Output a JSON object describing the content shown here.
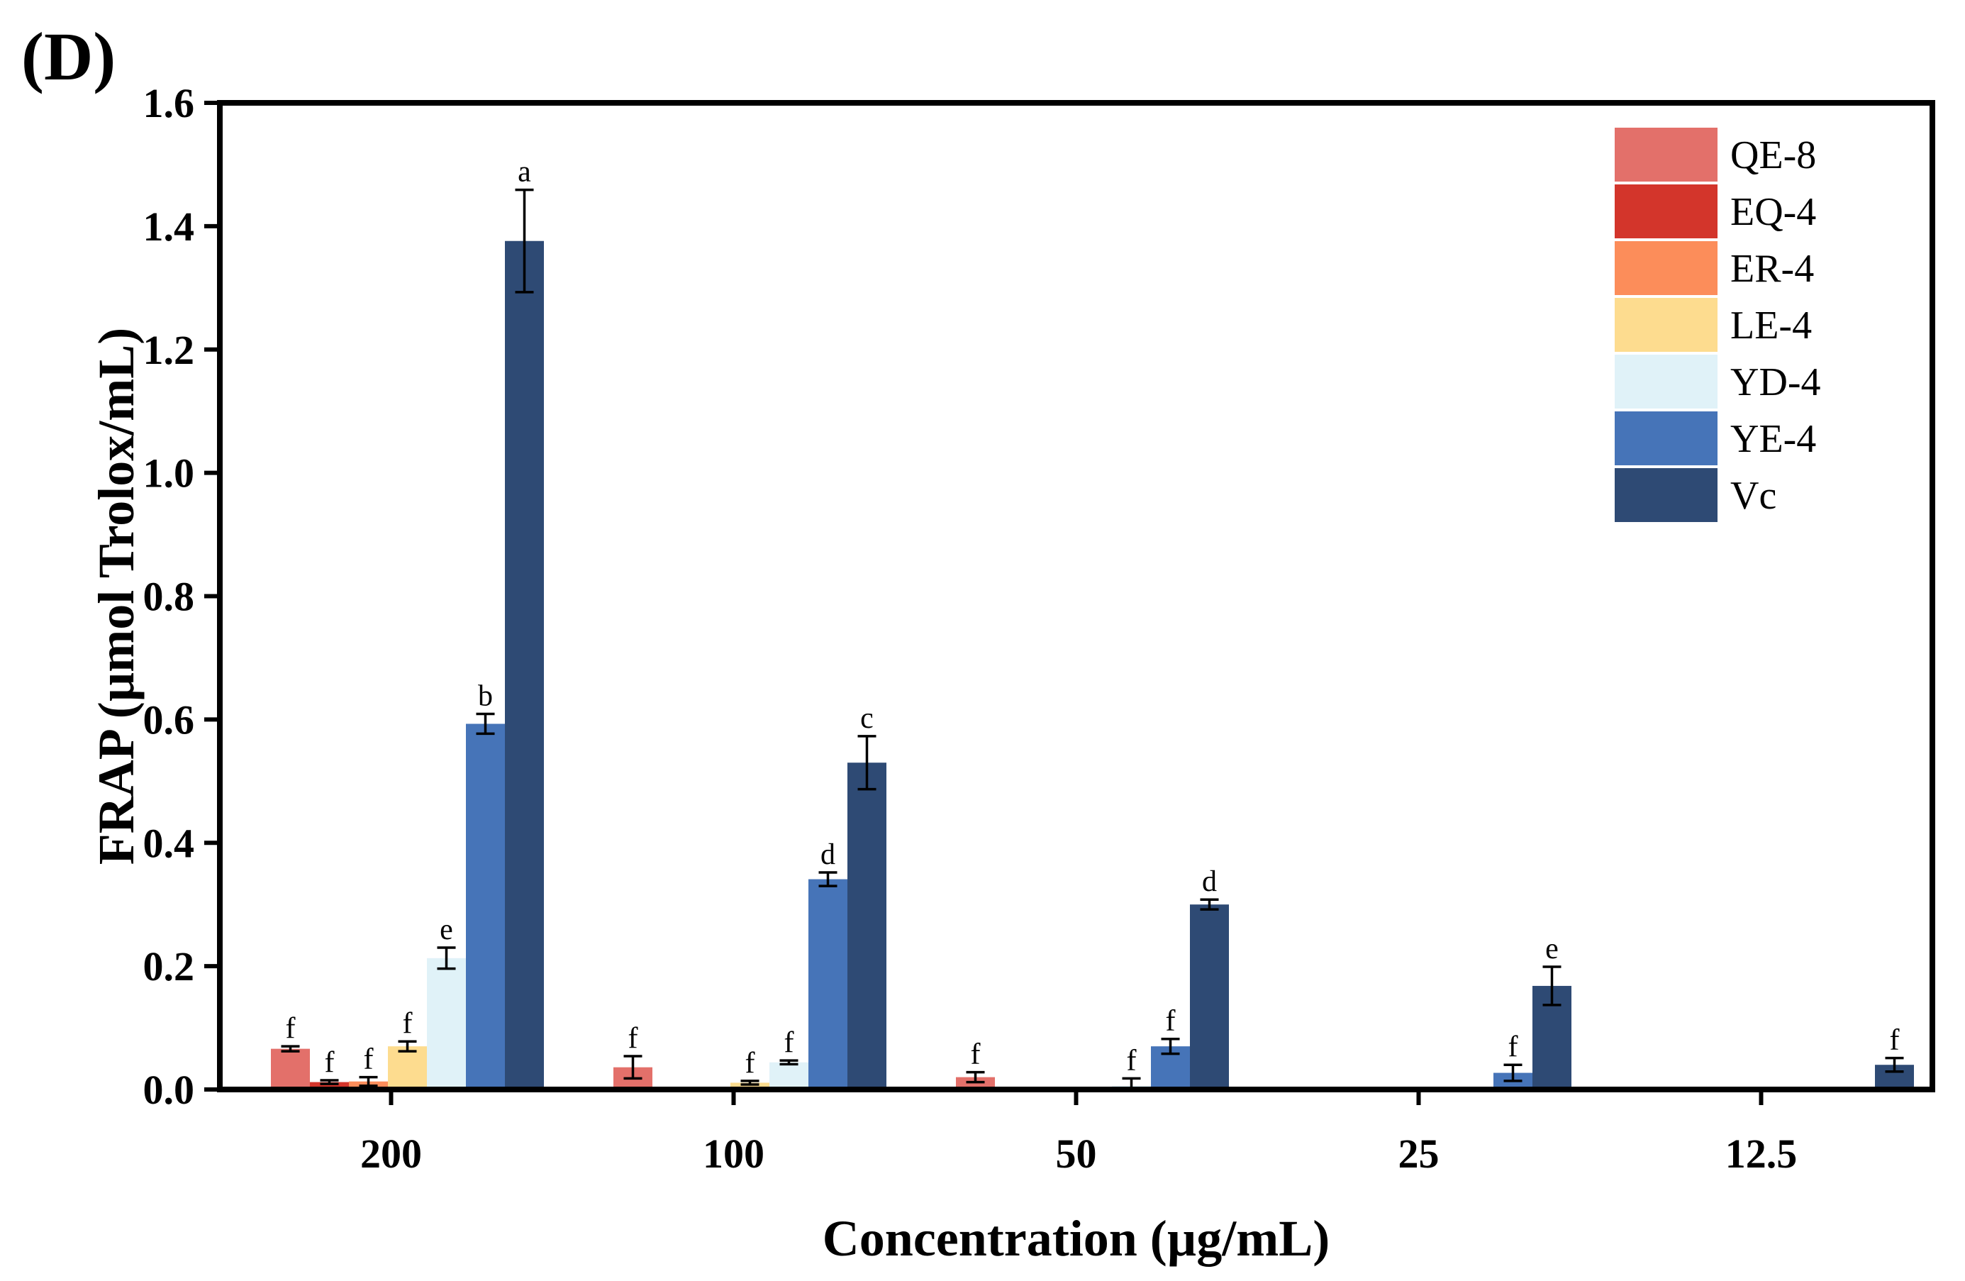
{
  "panel_label": "(D)",
  "chart_data": {
    "type": "bar",
    "title": "",
    "xlabel": "Concentration (µg/mL)",
    "ylabel": "FRAP (µmol Trolox/mL)",
    "ylim": [
      0,
      1.6
    ],
    "yticks": [
      "0.0",
      "0.2",
      "0.4",
      "0.6",
      "0.8",
      "1.0",
      "1.2",
      "1.4",
      "1.6"
    ],
    "categories": [
      "200",
      "100",
      "50",
      "25",
      "12.5"
    ],
    "legend_position": "top-right",
    "series": [
      {
        "name": "QE-8",
        "color": "#E3706A",
        "values": [
          0.066,
          0.036,
          0.02,
          0,
          0
        ],
        "errors": [
          0.004,
          0.018,
          0.008,
          0,
          0
        ],
        "labels": [
          "f",
          "f",
          "f",
          "",
          ""
        ]
      },
      {
        "name": "EQ-4",
        "color": "#D3352B",
        "values": [
          0.012,
          0,
          0,
          0,
          0
        ],
        "errors": [
          0.003,
          0,
          0,
          0,
          0
        ],
        "labels": [
          "f",
          "",
          "",
          "",
          ""
        ]
      },
      {
        "name": "ER-4",
        "color": "#FC8D5A",
        "values": [
          0.013,
          0,
          0,
          0,
          0
        ],
        "errors": [
          0.007,
          0,
          0,
          0,
          0
        ],
        "labels": [
          "f",
          "",
          "",
          "",
          ""
        ]
      },
      {
        "name": "LE-4",
        "color": "#FDDC8F",
        "values": [
          0.07,
          0.011,
          0,
          0,
          0
        ],
        "errors": [
          0.008,
          0.003,
          0,
          0,
          0
        ],
        "labels": [
          "f",
          "f",
          "",
          "",
          ""
        ]
      },
      {
        "name": "YD-4",
        "color": "#E0F2F8",
        "values": [
          0.213,
          0.044,
          0.006,
          0,
          0
        ],
        "errors": [
          0.017,
          0.003,
          0.012,
          0,
          0
        ],
        "labels": [
          "e",
          "f",
          "f",
          "",
          ""
        ]
      },
      {
        "name": "YE-4",
        "color": "#4674B8",
        "values": [
          0.593,
          0.341,
          0.07,
          0.027,
          0
        ],
        "errors": [
          0.016,
          0.011,
          0.012,
          0.013,
          0
        ],
        "labels": [
          "b",
          "d",
          "f",
          "f",
          ""
        ]
      },
      {
        "name": "Vc",
        "color": "#2E4A74",
        "values": [
          1.376,
          0.53,
          0.3,
          0.168,
          0.04
        ],
        "errors": [
          0.083,
          0.043,
          0.008,
          0.031,
          0.011
        ],
        "labels": [
          "a",
          "c",
          "d",
          "e",
          "f"
        ]
      }
    ]
  }
}
